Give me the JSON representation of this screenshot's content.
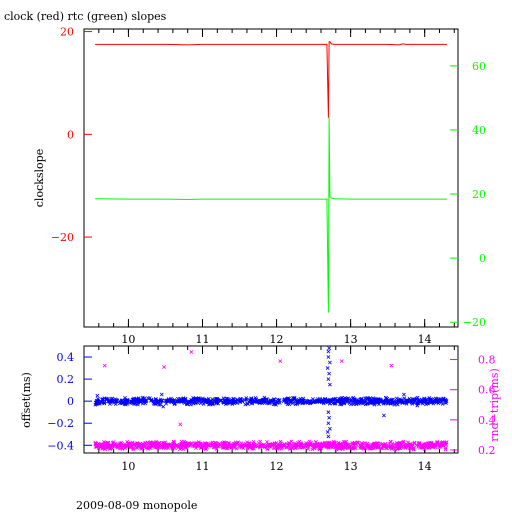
{
  "title": "clock (red) rtc (green) slopes",
  "footer": "2009-08-09 monopole",
  "colors": {
    "frame": "#000000",
    "clock": "#ff0000",
    "rtc": "#00ff00",
    "offset": "#0000ff",
    "rndtrip": "#ff00ff"
  },
  "chart_data": [
    {
      "type": "line",
      "xlim": [
        9.4,
        14.45
      ],
      "x_ticks": [
        "10",
        "11",
        "12",
        "13",
        "14"
      ],
      "left_axis": {
        "label": "clockslope",
        "ylim": [
          -37.5,
          20.5
        ],
        "ticks": [
          "20",
          "0",
          "−20"
        ],
        "color": "#ff0000"
      },
      "right_axis": {
        "label": "",
        "ylim": [
          -21.5,
          71.5
        ],
        "ticks": [
          "60",
          "40",
          "20",
          "0",
          "−20"
        ],
        "color": "#00ff00"
      },
      "series": [
        {
          "name": "clock",
          "axis": "left",
          "color": "#ff0000",
          "x": [
            9.55,
            10.0,
            10.5,
            10.8,
            11.0,
            11.5,
            12.0,
            12.5,
            12.68,
            12.7,
            12.71,
            12.72,
            12.74,
            12.78,
            13.0,
            13.5,
            13.65,
            13.7,
            13.75,
            14.0,
            14.3
          ],
          "y": [
            17.5,
            17.5,
            17.5,
            17.4,
            17.5,
            17.5,
            17.5,
            17.5,
            17.5,
            3.2,
            18.0,
            18.0,
            17.6,
            17.5,
            17.5,
            17.5,
            17.4,
            17.6,
            17.5,
            17.5,
            17.5
          ]
        },
        {
          "name": "rtc",
          "axis": "right",
          "color": "#00ff00",
          "x": [
            9.55,
            10.0,
            10.5,
            10.8,
            11.0,
            11.5,
            12.0,
            12.5,
            12.68,
            12.7,
            12.71,
            12.72,
            12.74,
            12.78,
            13.0,
            13.5,
            14.0,
            14.3
          ],
          "y": [
            18.5,
            18.4,
            18.4,
            18.3,
            18.4,
            18.4,
            18.4,
            18.4,
            18.4,
            -17.0,
            44.0,
            19.2,
            18.8,
            18.5,
            18.4,
            18.4,
            18.4,
            18.4
          ]
        }
      ]
    },
    {
      "type": "scatter",
      "xlim": [
        9.4,
        14.45
      ],
      "x_ticks": [
        "10",
        "11",
        "12",
        "13",
        "14"
      ],
      "left_axis": {
        "label": "offset(ms)",
        "ylim": [
          -0.47,
          0.5
        ],
        "ticks": [
          "0.4",
          "0.2",
          "0",
          "−0.2",
          "−0.4"
        ],
        "color": "#0000ff"
      },
      "right_axis": {
        "label": "rnd−trip(ms)",
        "ylim": [
          0.18,
          0.89
        ],
        "ticks": [
          "0.8",
          "0.6",
          "0.4",
          "0.2"
        ],
        "color": "#ff00ff"
      },
      "series": [
        {
          "name": "offset",
          "axis": "left",
          "marker": "x",
          "color": "#0000ff",
          "band": {
            "x": [
              9.55,
              14.3
            ],
            "center": 0.0,
            "spread": 0.035
          },
          "outliers": [
            {
              "x": 9.58,
              "y": 0.05
            },
            {
              "x": 10.45,
              "y": 0.06
            },
            {
              "x": 10.47,
              "y": -0.05
            },
            {
              "x": 12.7,
              "y": 0.45
            },
            {
              "x": 12.71,
              "y": 0.48
            },
            {
              "x": 12.7,
              "y": 0.4
            },
            {
              "x": 12.72,
              "y": 0.35
            },
            {
              "x": 12.69,
              "y": 0.3
            },
            {
              "x": 12.71,
              "y": 0.25
            },
            {
              "x": 12.7,
              "y": 0.2
            },
            {
              "x": 12.72,
              "y": 0.15
            },
            {
              "x": 12.7,
              "y": -0.1
            },
            {
              "x": 12.71,
              "y": -0.15
            },
            {
              "x": 12.7,
              "y": -0.2
            },
            {
              "x": 12.72,
              "y": -0.25
            },
            {
              "x": 12.69,
              "y": -0.28
            },
            {
              "x": 12.7,
              "y": -0.32
            },
            {
              "x": 13.45,
              "y": -0.13
            },
            {
              "x": 13.72,
              "y": 0.06
            },
            {
              "x": 13.9,
              "y": -0.04
            }
          ]
        },
        {
          "name": "rnd-trip",
          "axis": "right",
          "marker": "x",
          "color": "#ff00ff",
          "band": {
            "x": [
              9.55,
              14.3
            ],
            "center": 0.23,
            "spread": 0.03
          },
          "outliers": [
            {
              "x": 9.68,
              "y": 0.76
            },
            {
              "x": 10.48,
              "y": 0.75
            },
            {
              "x": 10.85,
              "y": 0.85
            },
            {
              "x": 12.05,
              "y": 0.79
            },
            {
              "x": 12.88,
              "y": 0.79
            },
            {
              "x": 13.55,
              "y": 0.76
            },
            {
              "x": 10.7,
              "y": 0.37
            }
          ]
        }
      ]
    }
  ]
}
